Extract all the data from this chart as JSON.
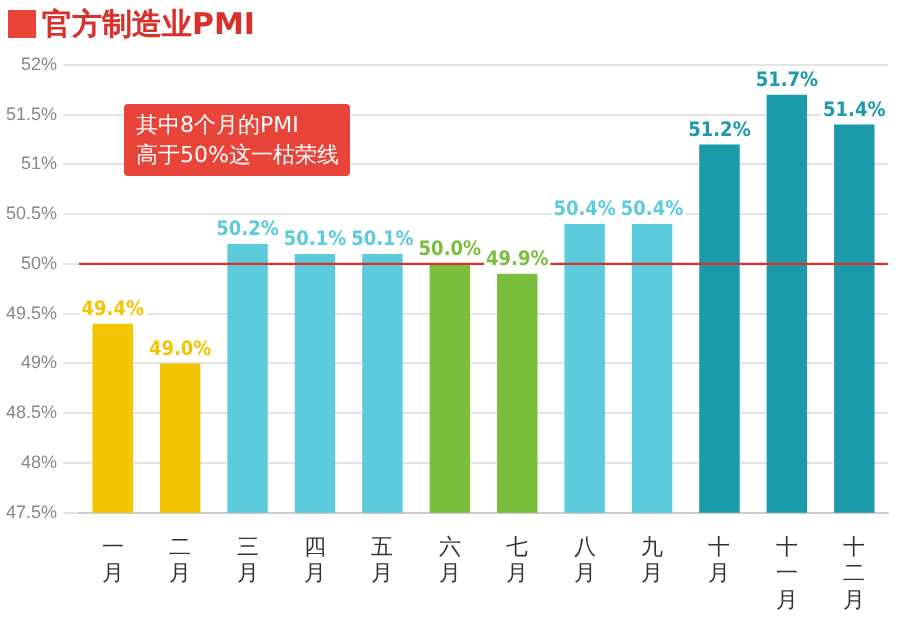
{
  "chart_data": {
    "type": "bar",
    "title": "官方制造业PMI",
    "categories": [
      "一月",
      "二月",
      "三月",
      "四月",
      "五月",
      "六月",
      "七月",
      "八月",
      "九月",
      "十月",
      "十一月",
      "十二月"
    ],
    "values": [
      49.4,
      49.0,
      50.2,
      50.1,
      50.1,
      50.0,
      49.9,
      50.4,
      50.4,
      51.2,
      51.7,
      51.4
    ],
    "value_labels": [
      "49.4%",
      "49.0%",
      "50.2%",
      "50.1%",
      "50.1%",
      "50.0%",
      "49.9%",
      "50.4%",
      "50.4%",
      "51.2%",
      "51.7%",
      "51.4%"
    ],
    "colors": [
      "#f5c400",
      "#f5c400",
      "#5ccbdc",
      "#5ccbdc",
      "#5ccbdc",
      "#7bbd3c",
      "#7bbd3c",
      "#5ccbdc",
      "#5ccbdc",
      "#1b9aaa",
      "#1b9aaa",
      "#1b9aaa"
    ],
    "ylim": [
      47.5,
      52
    ],
    "yticks": [
      {
        "value": 47.5,
        "label": "47.5%"
      },
      {
        "value": 48,
        "label": "48%"
      },
      {
        "value": 48.5,
        "label": "48.5%"
      },
      {
        "value": 49,
        "label": "49%"
      },
      {
        "value": 49.5,
        "label": "49.5%"
      },
      {
        "value": 50,
        "label": "50%"
      },
      {
        "value": 50.5,
        "label": "50.5%"
      },
      {
        "value": 51,
        "label": "51%"
      },
      {
        "value": 51.5,
        "label": "51.5%"
      },
      {
        "value": 52,
        "label": "52%"
      }
    ],
    "ref_lines": [
      {
        "axis": "y",
        "value": 50,
        "color": "#d9302c"
      }
    ],
    "annotations": [
      "其中8个月的PMI\n高于50%这一枯荣线"
    ],
    "grid": "y",
    "legend": false
  }
}
